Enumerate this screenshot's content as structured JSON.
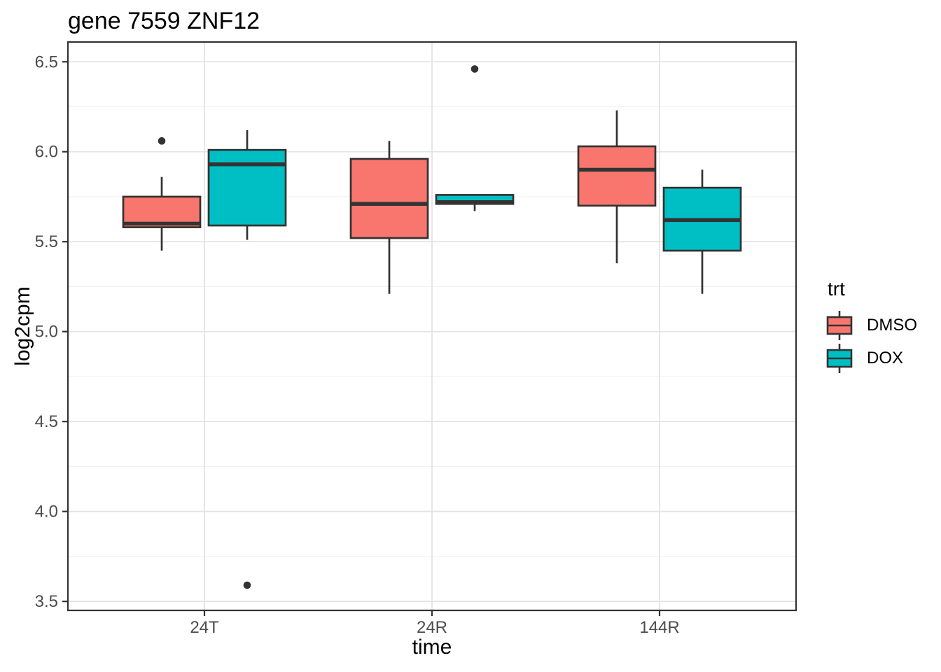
{
  "chart_data": {
    "type": "boxplot",
    "title": "gene 7559 ZNF12",
    "xlabel": "time",
    "ylabel": "log2cpm",
    "categories": [
      "24T",
      "24R",
      "144R"
    ],
    "y_axis": {
      "ticks": [
        3.5,
        4.0,
        4.5,
        5.0,
        5.5,
        6.0,
        6.5
      ],
      "tick_labels": [
        "3.5",
        "4.0",
        "4.5",
        "5.0",
        "5.5",
        "6.0",
        "6.5"
      ],
      "minor_ticks": [
        3.75,
        4.25,
        4.75,
        5.25,
        5.75,
        6.25
      ],
      "range": [
        3.45,
        6.61
      ]
    },
    "legend": {
      "title": "trt",
      "position": "right",
      "entries": [
        {
          "label": "DMSO",
          "color": "#F8766D"
        },
        {
          "label": "DOX",
          "color": "#00BFC4"
        }
      ]
    },
    "grid": {
      "major": true,
      "minor": true,
      "vertical_major": true
    },
    "series": [
      {
        "name": "DMSO",
        "color": "#F8766D",
        "boxes": [
          {
            "category": "24T",
            "lower_whisker": 5.45,
            "q1": 5.58,
            "median": 5.6,
            "q3": 5.75,
            "upper_whisker": 5.86,
            "outliers": [
              6.06
            ]
          },
          {
            "category": "24R",
            "lower_whisker": 5.21,
            "q1": 5.52,
            "median": 5.71,
            "q3": 5.96,
            "upper_whisker": 6.06,
            "outliers": []
          },
          {
            "category": "144R",
            "lower_whisker": 5.38,
            "q1": 5.7,
            "median": 5.9,
            "q3": 6.03,
            "upper_whisker": 6.23,
            "outliers": []
          }
        ]
      },
      {
        "name": "DOX",
        "color": "#00BFC4",
        "boxes": [
          {
            "category": "24T",
            "lower_whisker": 5.51,
            "q1": 5.59,
            "median": 5.93,
            "q3": 6.01,
            "upper_whisker": 6.12,
            "outliers": [
              3.59
            ]
          },
          {
            "category": "24R",
            "lower_whisker": 5.67,
            "q1": 5.71,
            "median": 5.72,
            "q3": 5.76,
            "upper_whisker": 5.76,
            "outliers": [
              6.46
            ]
          },
          {
            "category": "144R",
            "lower_whisker": 5.21,
            "q1": 5.45,
            "median": 5.62,
            "q3": 5.8,
            "upper_whisker": 5.9,
            "outliers": []
          }
        ]
      }
    ],
    "style": {
      "box_border": "#333333",
      "panel_border": "#333333",
      "grid_major": "#E4E4E4",
      "grid_minor": "#F1F1F1",
      "tick_label_color": "#4D4D4D",
      "text_color": "#000000",
      "background": "#FFFFFF"
    }
  }
}
